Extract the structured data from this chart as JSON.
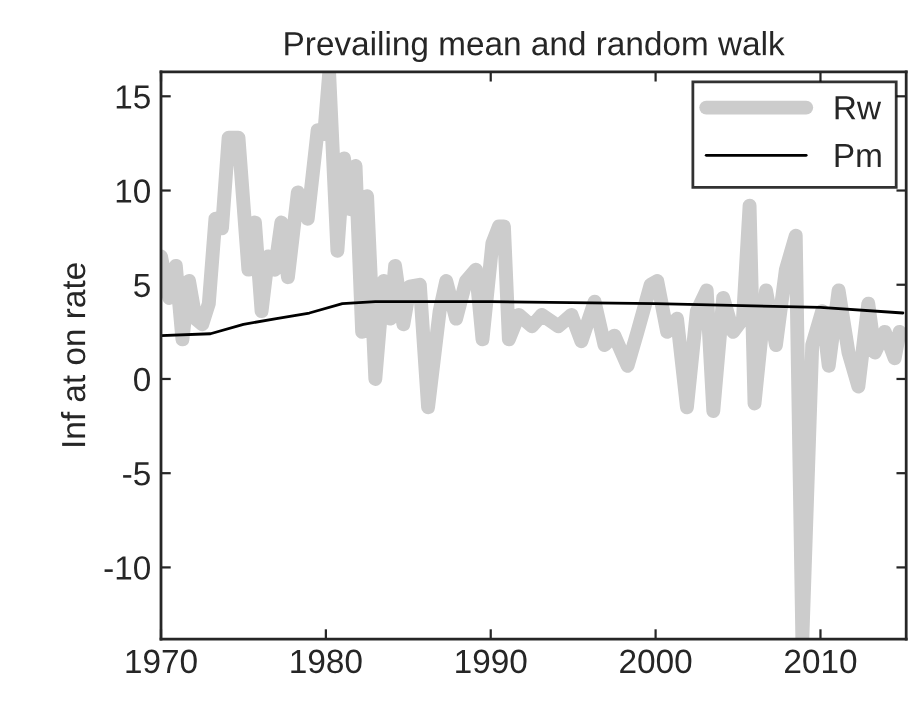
{
  "chart_data": {
    "type": "line",
    "title": "Prevailing mean and random walk",
    "ylabel": "Inf at on rate",
    "xlim": [
      1970,
      2015.2
    ],
    "ylim": [
      -13.8,
      16.3
    ],
    "xticks": [
      1970,
      1980,
      1990,
      2000,
      2010
    ],
    "yticks": [
      -10,
      -5,
      0,
      5,
      10,
      15
    ],
    "grid": false,
    "legend": "top right",
    "marker": "none",
    "series": [
      {
        "name": "Rw",
        "color": "#cccccc",
        "line_style": "solid",
        "x": [
          1970,
          1970.5,
          1970.9,
          1971.3,
          1971.7,
          1972.1,
          1972.5,
          1972.9,
          1973.3,
          1973.7,
          1974.1,
          1974.7,
          1975.3,
          1975.7,
          1976.1,
          1976.5,
          1976.9,
          1977.3,
          1977.7,
          1978.3,
          1978.9,
          1979.5,
          1979.9,
          1980.2,
          1980.7,
          1981.1,
          1981.5,
          1981.8,
          1982.2,
          1982.5,
          1983.0,
          1983.5,
          1983.9,
          1984.2,
          1984.7,
          1985.1,
          1985.7,
          1986.2,
          1986.9,
          1987.3,
          1987.9,
          1988.5,
          1989.1,
          1989.5,
          1990.1,
          1990.5,
          1990.8,
          1991.1,
          1991.7,
          1992.5,
          1993.1,
          1994.1,
          1994.9,
          1995.5,
          1996.3,
          1996.9,
          1997.5,
          1998.3,
          1998.9,
          1999.7,
          2000.1,
          2000.7,
          2001.3,
          2001.9,
          2002.5,
          2003.1,
          2003.5,
          2004.1,
          2004.7,
          2005.3,
          2005.7,
          2006.0,
          2006.7,
          2007.3,
          2007.9,
          2008.5,
          2008.9,
          2009.5,
          2010.1,
          2010.5,
          2011.1,
          2011.7,
          2012.3,
          2012.9,
          2013.3,
          2013.9,
          2014.5,
          2014.8
        ],
        "values": [
          6.5,
          4.3,
          6.0,
          2.1,
          5.2,
          3.2,
          2.9,
          4.0,
          8.5,
          8.0,
          12.8,
          12.8,
          5.8,
          8.3,
          3.6,
          6.5,
          5.8,
          8.3,
          5.4,
          9.9,
          8.5,
          13.2,
          13.0,
          16.2,
          6.8,
          11.7,
          9.0,
          11.3,
          2.5,
          9.7,
          0.0,
          5.2,
          3.2,
          6.0,
          2.9,
          4.9,
          5.0,
          -1.5,
          3.6,
          5.2,
          3.2,
          5.2,
          5.8,
          2.1,
          7.2,
          8.1,
          8.1,
          2.1,
          3.4,
          2.8,
          3.4,
          2.8,
          3.4,
          2.0,
          4.1,
          1.8,
          2.3,
          0.7,
          2.5,
          5.0,
          5.2,
          2.5,
          3.2,
          -1.5,
          3.6,
          4.7,
          -1.7,
          4.3,
          2.5,
          3.2,
          9.2,
          -1.3,
          4.7,
          1.8,
          5.8,
          7.6,
          -13.8,
          1.8,
          3.6,
          0.7,
          4.7,
          1.4,
          -0.4,
          4.0,
          1.4,
          2.5,
          1.1,
          2.5
        ]
      },
      {
        "name": "Pm",
        "color": "#000000",
        "line_style": "solid",
        "x": [
          1970,
          1973,
          1975,
          1977,
          1979,
          1981,
          1983,
          1990,
          2000,
          2010,
          2015
        ],
        "values": [
          2.3,
          2.4,
          2.9,
          3.2,
          3.5,
          4.0,
          4.1,
          4.1,
          4.0,
          3.8,
          3.5
        ]
      }
    ]
  }
}
